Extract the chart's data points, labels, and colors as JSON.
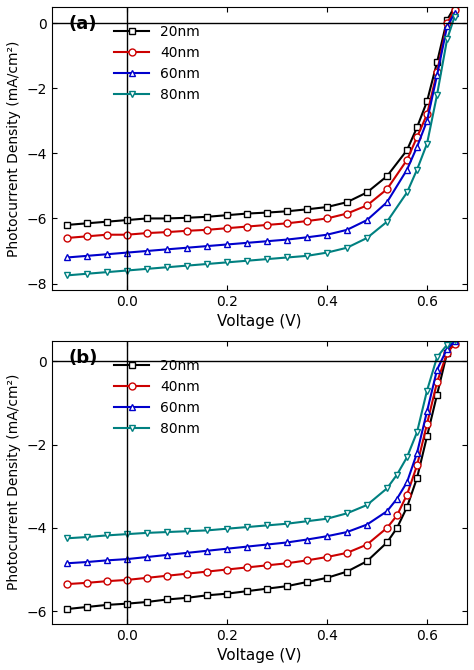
{
  "panel_a": {
    "label": "(a)",
    "ylabel": "Photocurrent Density (mA/cm²)",
    "xlabel": "Voltage (V)",
    "xlim": [
      -0.15,
      0.68
    ],
    "ylim": [
      -8.2,
      0.5
    ],
    "yticks": [
      0,
      -2,
      -4,
      -6,
      -8
    ],
    "xticks": [
      0.0,
      0.2,
      0.4,
      0.6
    ],
    "series": [
      {
        "label": "20nm",
        "color": "#000000",
        "marker": "s",
        "marker_face": "white",
        "x": [
          -0.12,
          -0.08,
          -0.04,
          0.0,
          0.04,
          0.08,
          0.12,
          0.16,
          0.2,
          0.24,
          0.28,
          0.32,
          0.36,
          0.4,
          0.44,
          0.48,
          0.52,
          0.56,
          0.58,
          0.6,
          0.62,
          0.64,
          0.655
        ],
        "y": [
          -6.2,
          -6.15,
          -6.1,
          -6.05,
          -6.0,
          -6.0,
          -5.98,
          -5.95,
          -5.9,
          -5.85,
          -5.82,
          -5.78,
          -5.72,
          -5.65,
          -5.5,
          -5.2,
          -4.7,
          -3.9,
          -3.2,
          -2.4,
          -1.2,
          0.1,
          0.5
        ]
      },
      {
        "label": "40nm",
        "color": "#cc0000",
        "marker": "o",
        "marker_face": "white",
        "x": [
          -0.12,
          -0.08,
          -0.04,
          0.0,
          0.04,
          0.08,
          0.12,
          0.16,
          0.2,
          0.24,
          0.28,
          0.32,
          0.36,
          0.4,
          0.44,
          0.48,
          0.52,
          0.56,
          0.58,
          0.6,
          0.62,
          0.64,
          0.655
        ],
        "y": [
          -6.6,
          -6.55,
          -6.5,
          -6.5,
          -6.45,
          -6.42,
          -6.38,
          -6.35,
          -6.3,
          -6.25,
          -6.2,
          -6.15,
          -6.08,
          -6.0,
          -5.85,
          -5.6,
          -5.1,
          -4.2,
          -3.5,
          -2.8,
          -1.5,
          0.0,
          0.4
        ]
      },
      {
        "label": "60nm",
        "color": "#0000cc",
        "marker": "^",
        "marker_face": "white",
        "x": [
          -0.12,
          -0.08,
          -0.04,
          0.0,
          0.04,
          0.08,
          0.12,
          0.16,
          0.2,
          0.24,
          0.28,
          0.32,
          0.36,
          0.4,
          0.44,
          0.48,
          0.52,
          0.56,
          0.58,
          0.6,
          0.62,
          0.64,
          0.655
        ],
        "y": [
          -7.2,
          -7.15,
          -7.1,
          -7.05,
          -7.0,
          -6.95,
          -6.9,
          -6.85,
          -6.8,
          -6.75,
          -6.7,
          -6.65,
          -6.58,
          -6.5,
          -6.35,
          -6.05,
          -5.5,
          -4.5,
          -3.8,
          -3.0,
          -1.6,
          -0.1,
          0.3
        ]
      },
      {
        "label": "80nm",
        "color": "#008080",
        "marker": "v",
        "marker_face": "white",
        "x": [
          -0.12,
          -0.08,
          -0.04,
          0.0,
          0.04,
          0.08,
          0.12,
          0.16,
          0.2,
          0.24,
          0.28,
          0.32,
          0.36,
          0.4,
          0.44,
          0.48,
          0.52,
          0.56,
          0.58,
          0.6,
          0.62,
          0.64,
          0.655
        ],
        "y": [
          -7.75,
          -7.7,
          -7.65,
          -7.6,
          -7.55,
          -7.5,
          -7.45,
          -7.4,
          -7.35,
          -7.3,
          -7.25,
          -7.2,
          -7.15,
          -7.05,
          -6.9,
          -6.6,
          -6.1,
          -5.2,
          -4.5,
          -3.7,
          -2.2,
          -0.5,
          0.2
        ]
      }
    ]
  },
  "panel_b": {
    "label": "(b)",
    "ylabel": "Photocurrent Density (mA/cm²)",
    "xlabel": "Voltage (V)",
    "xlim": [
      -0.15,
      0.68
    ],
    "ylim": [
      -6.3,
      0.5
    ],
    "yticks": [
      0,
      -2,
      -4,
      -6
    ],
    "xticks": [
      0.0,
      0.2,
      0.4,
      0.6
    ],
    "series": [
      {
        "label": "20nm",
        "color": "#000000",
        "marker": "s",
        "marker_face": "white",
        "x": [
          -0.12,
          -0.08,
          -0.04,
          0.0,
          0.04,
          0.08,
          0.12,
          0.16,
          0.2,
          0.24,
          0.28,
          0.32,
          0.36,
          0.4,
          0.44,
          0.48,
          0.52,
          0.54,
          0.56,
          0.58,
          0.6,
          0.62,
          0.64,
          0.655
        ],
        "y": [
          -5.95,
          -5.9,
          -5.85,
          -5.82,
          -5.78,
          -5.72,
          -5.68,
          -5.62,
          -5.58,
          -5.52,
          -5.46,
          -5.4,
          -5.3,
          -5.2,
          -5.05,
          -4.8,
          -4.35,
          -4.0,
          -3.5,
          -2.8,
          -1.8,
          -0.8,
          0.2,
          0.45
        ]
      },
      {
        "label": "40nm",
        "color": "#cc0000",
        "marker": "o",
        "marker_face": "white",
        "x": [
          -0.12,
          -0.08,
          -0.04,
          0.0,
          0.04,
          0.08,
          0.12,
          0.16,
          0.2,
          0.24,
          0.28,
          0.32,
          0.36,
          0.4,
          0.44,
          0.48,
          0.52,
          0.54,
          0.56,
          0.58,
          0.6,
          0.62,
          0.64,
          0.655
        ],
        "y": [
          -5.35,
          -5.32,
          -5.28,
          -5.25,
          -5.2,
          -5.15,
          -5.1,
          -5.05,
          -5.0,
          -4.95,
          -4.9,
          -4.85,
          -4.78,
          -4.7,
          -4.6,
          -4.4,
          -4.0,
          -3.7,
          -3.2,
          -2.5,
          -1.5,
          -0.5,
          0.2,
          0.42
        ]
      },
      {
        "label": "60nm",
        "color": "#0000cc",
        "marker": "^",
        "marker_face": "white",
        "x": [
          -0.12,
          -0.08,
          -0.04,
          0.0,
          0.04,
          0.08,
          0.12,
          0.16,
          0.2,
          0.24,
          0.28,
          0.32,
          0.36,
          0.4,
          0.44,
          0.48,
          0.52,
          0.54,
          0.56,
          0.58,
          0.6,
          0.62,
          0.64,
          0.655
        ],
        "y": [
          -4.85,
          -4.82,
          -4.78,
          -4.75,
          -4.7,
          -4.65,
          -4.6,
          -4.55,
          -4.5,
          -4.45,
          -4.4,
          -4.35,
          -4.28,
          -4.2,
          -4.1,
          -3.92,
          -3.6,
          -3.3,
          -2.9,
          -2.2,
          -1.2,
          -0.2,
          0.3,
          0.48
        ]
      },
      {
        "label": "80nm",
        "color": "#008080",
        "marker": "v",
        "marker_face": "white",
        "x": [
          -0.12,
          -0.08,
          -0.04,
          0.0,
          0.04,
          0.08,
          0.12,
          0.16,
          0.2,
          0.24,
          0.28,
          0.32,
          0.36,
          0.4,
          0.44,
          0.48,
          0.52,
          0.54,
          0.56,
          0.58,
          0.6,
          0.62,
          0.64,
          0.655
        ],
        "y": [
          -4.25,
          -4.22,
          -4.18,
          -4.15,
          -4.12,
          -4.1,
          -4.08,
          -4.06,
          -4.02,
          -3.98,
          -3.94,
          -3.9,
          -3.84,
          -3.78,
          -3.65,
          -3.45,
          -3.05,
          -2.72,
          -2.3,
          -1.7,
          -0.7,
          0.1,
          0.4,
          0.52
        ]
      }
    ]
  },
  "figure_bg": "#ffffff",
  "line_width": 1.5,
  "marker_size": 5
}
